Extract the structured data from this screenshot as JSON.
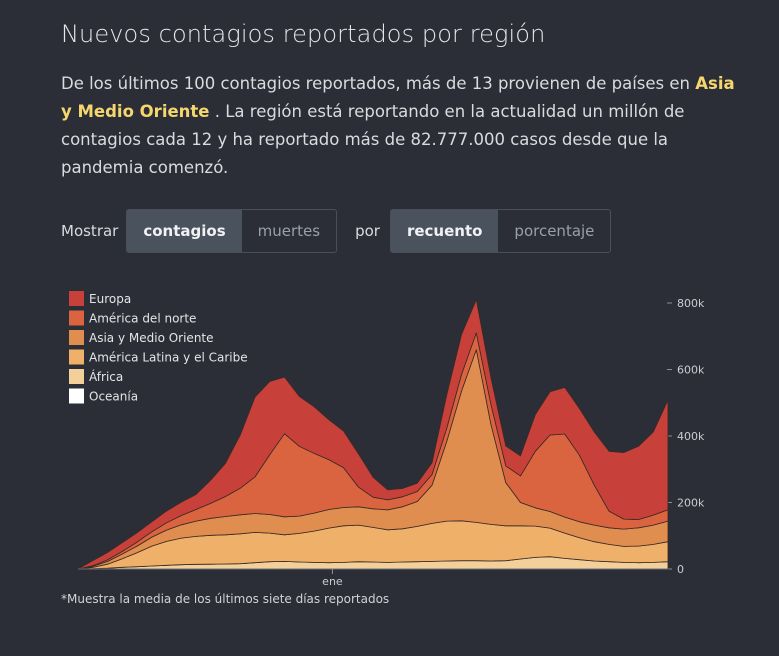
{
  "header": {
    "title": "Nuevos contagios reportados por región"
  },
  "lede": {
    "part1": "De los últimos 100 contagios reportados, más de 13 provienen de países en ",
    "highlight": "Asia y Medio Oriente",
    "part2": " . La región está reportando en la actualidad un millón de contagios cada 12 y ha reportado más de 82.777.000 casos desde que la pandemia comenzó."
  },
  "controls": {
    "show_label": "Mostrar",
    "show_options": [
      "contagios",
      "muertes"
    ],
    "show_selected": "contagios",
    "by_label": "por",
    "by_options": [
      "recuento",
      "porcentaje"
    ],
    "by_selected": "recuento"
  },
  "footnote": "*Muestra la media de los últimos siete días reportados",
  "colors": {
    "background": "#2b2e36",
    "highlight": "#f5d76e"
  },
  "chart_data": {
    "type": "area",
    "stacked": true,
    "x": [
      0,
      4,
      8,
      12,
      16,
      20,
      24,
      28,
      32,
      36,
      40,
      44,
      48,
      52,
      56,
      60,
      64,
      68,
      72,
      76,
      80,
      84,
      88,
      92,
      96,
      100,
      104,
      108,
      112,
      116,
      120,
      124,
      128,
      132,
      136,
      140,
      144,
      148,
      152,
      156,
      160
    ],
    "x_unit": "semanas (índice)",
    "x_tick_labels": [
      {
        "x": 69,
        "label": "ene"
      }
    ],
    "ylim": [
      0,
      800000
    ],
    "y_ticks": [
      0,
      200000,
      400000,
      600000,
      800000
    ],
    "y_tick_labels": [
      "0",
      "200k",
      "400k",
      "600k",
      "800k"
    ],
    "legend_position": "top-left",
    "series": [
      {
        "name": "Oceanía",
        "color": "#ffffff",
        "values": [
          0,
          0,
          0,
          0,
          0,
          0,
          0,
          0,
          0,
          0,
          0,
          0,
          0,
          0,
          0,
          0,
          0,
          0,
          0,
          0,
          0,
          0,
          0,
          0,
          0,
          0,
          0,
          0,
          0,
          0,
          0,
          0,
          0,
          0,
          0,
          0,
          0,
          0,
          0,
          0,
          0
        ]
      },
      {
        "name": "África",
        "color": "#f3d09a",
        "values": [
          0,
          1000,
          2500,
          5000,
          7000,
          9000,
          11000,
          13000,
          14000,
          14500,
          15000,
          16000,
          19000,
          22000,
          23000,
          21000,
          20000,
          19000,
          20000,
          22000,
          21000,
          20000,
          21000,
          22000,
          23000,
          24000,
          25000,
          25000,
          24000,
          25000,
          30000,
          35000,
          37000,
          32000,
          28000,
          24000,
          22000,
          20000,
          19000,
          20000,
          22000
        ]
      },
      {
        "name": "América Latina y el Caribe",
        "color": "#efb06a",
        "values": [
          0,
          4000,
          12000,
          26000,
          42000,
          60000,
          72000,
          80000,
          84000,
          87000,
          88000,
          90000,
          91000,
          86000,
          80000,
          86000,
          94000,
          104000,
          110000,
          110000,
          104000,
          98000,
          100000,
          106000,
          114000,
          120000,
          120000,
          115000,
          110000,
          105000,
          100000,
          94000,
          86000,
          76000,
          66000,
          58000,
          52000,
          48000,
          50000,
          54000,
          60000
        ]
      },
      {
        "name": "Asia y Medio Oriente",
        "color": "#e08d50",
        "values": [
          0,
          3000,
          8000,
          14000,
          20000,
          27000,
          34000,
          40000,
          46000,
          51000,
          55000,
          57000,
          57000,
          56000,
          54000,
          52000,
          54000,
          56000,
          55000,
          55000,
          56000,
          60000,
          66000,
          75000,
          115000,
          240000,
          390000,
          520000,
          300000,
          130000,
          70000,
          55000,
          50000,
          48000,
          48000,
          50000,
          50000,
          52000,
          55000,
          58000,
          62000
        ]
      },
      {
        "name": "América del norte",
        "color": "#d9643f",
        "values": [
          0,
          2000,
          5000,
          8000,
          12000,
          16000,
          22000,
          28000,
          35000,
          45000,
          60000,
          80000,
          110000,
          180000,
          250000,
          210000,
          180000,
          150000,
          120000,
          60000,
          35000,
          30000,
          30000,
          30000,
          32000,
          40000,
          50000,
          50000,
          60000,
          50000,
          80000,
          170000,
          230000,
          250000,
          200000,
          120000,
          50000,
          30000,
          25000,
          30000,
          34000
        ]
      },
      {
        "name": "Europa",
        "color": "#c7413a",
        "values": [
          0,
          15000,
          22000,
          26000,
          28000,
          30000,
          35000,
          40000,
          45000,
          70000,
          100000,
          160000,
          240000,
          220000,
          170000,
          150000,
          140000,
          120000,
          110000,
          100000,
          60000,
          30000,
          25000,
          25000,
          35000,
          100000,
          120000,
          100000,
          80000,
          60000,
          60000,
          110000,
          130000,
          140000,
          140000,
          160000,
          180000,
          200000,
          220000,
          250000,
          330000
        ]
      }
    ]
  }
}
